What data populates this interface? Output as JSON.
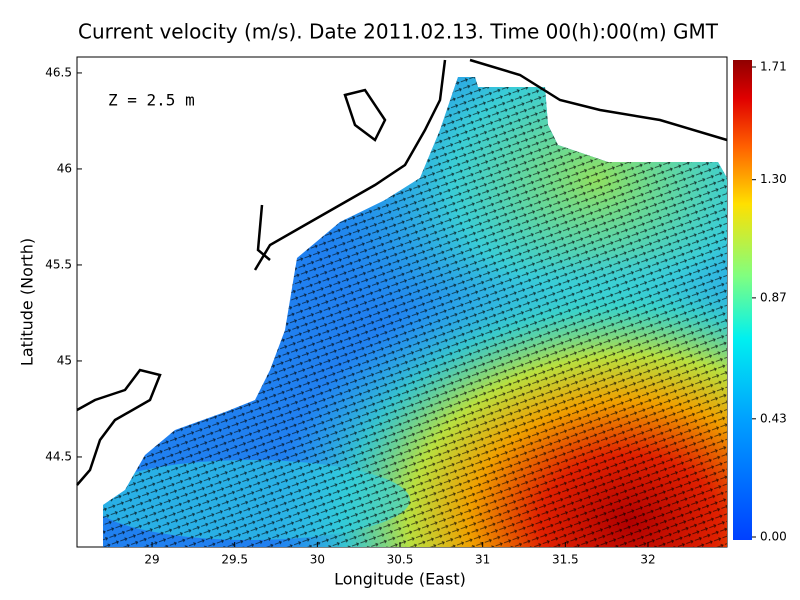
{
  "map": {
    "title": "Current velocity (m/s). Date 2011.02.13. Time 00(h):00(m) GMT",
    "annotation": "Z = 2.5 m",
    "x_label": "Longitude (East)",
    "y_label": "Latitude (North)",
    "xlim": [
      28.546,
      32.478
    ],
    "ylim": [
      44.031,
      46.583
    ],
    "xticks": [
      29,
      29.5,
      30,
      30.5,
      31,
      31.5,
      32
    ],
    "yticks": [
      44.5,
      45,
      45.5,
      46,
      46.5
    ],
    "colorbar": {
      "lim": [
        0,
        1.71
      ],
      "ticks": [
        {
          "value": 0,
          "label": "0.00"
        },
        0.43,
        0.87,
        {
          "value": 1.3,
          "label": "1.30"
        },
        1.71
      ]
    }
  }
}
